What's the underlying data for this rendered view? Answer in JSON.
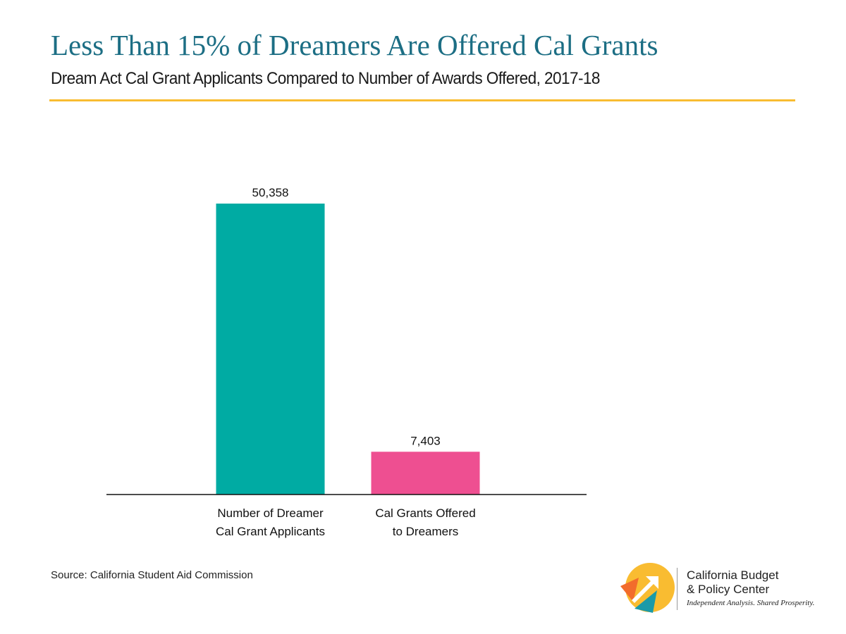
{
  "header": {
    "title": "Less Than 15% of Dreamers Are Offered Cal Grants",
    "subtitle": "Dream Act Cal Grant Applicants Compared to Number of Awards Offered, 2017-18"
  },
  "chart_data": {
    "type": "bar",
    "title": "Less Than 15% of Dreamers Are Offered Cal Grants",
    "subtitle": "Dream Act Cal Grant Applicants Compared to Number of Awards Offered, 2017-18",
    "categories": [
      [
        "Number of Dreamer",
        "Cal Grant Applicants"
      ],
      [
        "Cal Grants Offered",
        "to Dreamers"
      ]
    ],
    "values": [
      50358,
      7403
    ],
    "value_labels": [
      "50,358",
      "7,403"
    ],
    "colors": [
      "#00ab a3",
      "#ee4f91"
    ],
    "xlabel": "",
    "ylabel": "",
    "ylim": [
      0,
      50358
    ],
    "grid": false,
    "legend": "none"
  },
  "footer": {
    "source": "Source: California Student Aid Commission"
  },
  "logo": {
    "name_line1": "California Budget",
    "name_line2": "& Policy Center",
    "tagline": "Independent Analysis. Shared Prosperity.",
    "colors": {
      "yellow": "#f9bc31",
      "orange": "#f26c2b",
      "teal": "#1b9aa8"
    }
  }
}
